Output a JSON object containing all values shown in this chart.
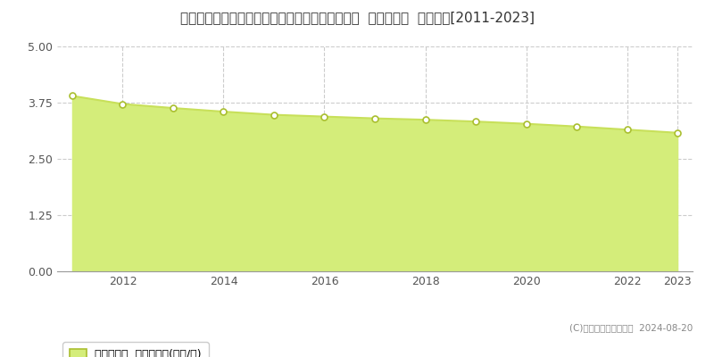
{
  "title": "徳島県那賀郡那賀町木頭出原字シモマチ３８番１  基準地価格  地価推移[2011-2023]",
  "years": [
    2011,
    2012,
    2013,
    2014,
    2015,
    2016,
    2017,
    2018,
    2019,
    2020,
    2021,
    2022,
    2023
  ],
  "values": [
    3.9,
    3.72,
    3.63,
    3.55,
    3.48,
    3.44,
    3.4,
    3.37,
    3.33,
    3.28,
    3.22,
    3.15,
    3.08
  ],
  "line_color": "#c8e05a",
  "fill_color": "#d4ed7a",
  "fill_alpha": 1.0,
  "marker_color": "white",
  "marker_edge_color": "#aabf30",
  "ylim": [
    0,
    5
  ],
  "yticks": [
    0,
    1.25,
    2.5,
    3.75,
    5
  ],
  "background_color": "#ffffff",
  "grid_color": "#cccccc",
  "title_fontsize": 11,
  "legend_label": "基準地価格  平均嵪単価(万円/嵪)",
  "copyright_text": "(C)土地価格ドットコム  2024-08-20",
  "xtick_years": [
    2012,
    2014,
    2016,
    2018,
    2020,
    2022,
    2023
  ]
}
